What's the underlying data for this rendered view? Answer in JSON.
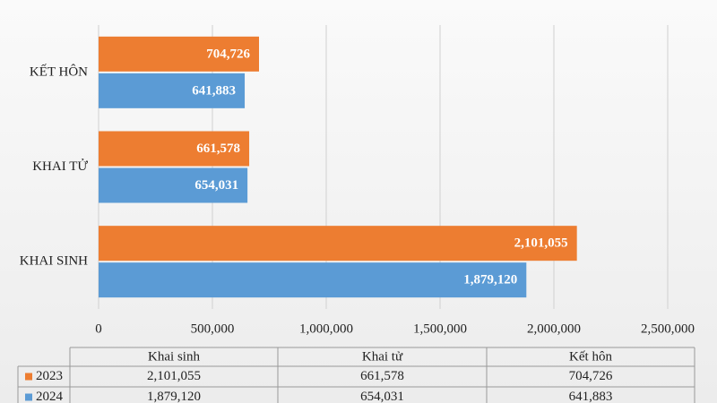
{
  "chart_data": {
    "type": "hbar",
    "categories": [
      "KHAI SINH",
      "KHAI TỬ",
      "KẾT HÔN"
    ],
    "series": [
      {
        "name": "2023",
        "color": "#ed7d31",
        "values": [
          2101055,
          661578,
          704726
        ],
        "value_labels": [
          "2,101,055",
          "661,578",
          "704,726"
        ]
      },
      {
        "name": "2024",
        "color": "#5b9bd5",
        "values": [
          1879120,
          654031,
          641883
        ],
        "value_labels": [
          "1,879,120",
          "654,031",
          "641,883"
        ]
      }
    ],
    "xlim": [
      0,
      2500000
    ],
    "xticks": [
      0,
      {
        "value": 500000,
        "label": "500,000"
      },
      {
        "value": 1000000,
        "label": "1,000,000"
      },
      {
        "value": 1500000,
        "label": "1,500,000"
      },
      {
        "value": 2000000,
        "label": "2,000,000"
      },
      {
        "value": 2500000,
        "label": "2,500,000"
      }
    ],
    "grid": true,
    "table_headers": [
      "Khai sinh",
      "Khai tử",
      "Kết hôn"
    ]
  }
}
